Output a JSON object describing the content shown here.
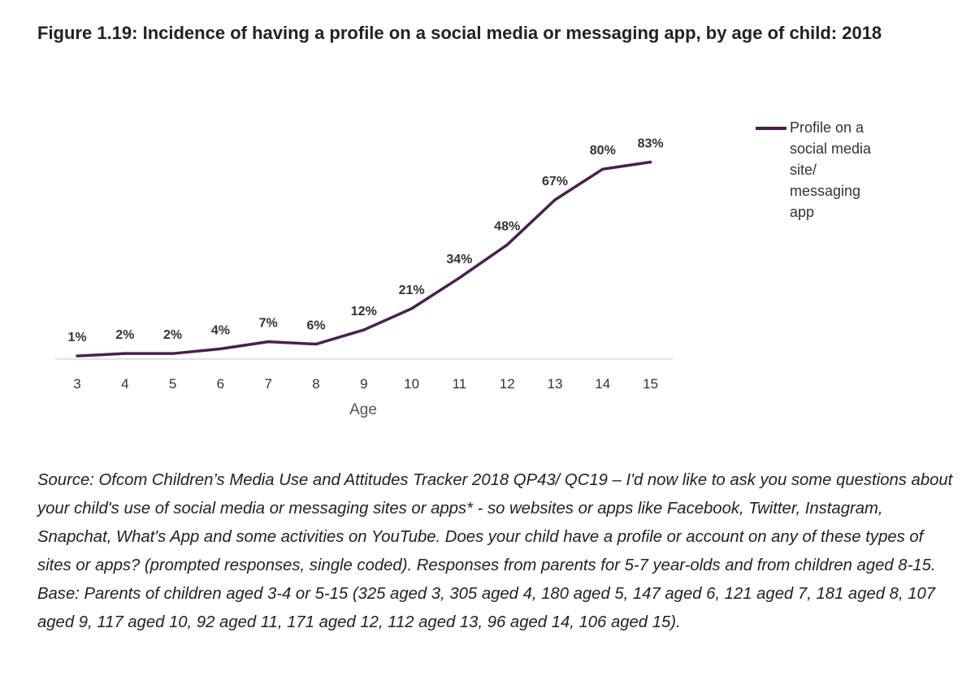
{
  "title": "Figure 1.19: Incidence of having a profile on a social media or messaging app, by age of child: 2018",
  "chart_data": {
    "type": "line",
    "xlabel": "Age",
    "ylabel": "",
    "x": [
      3,
      4,
      5,
      6,
      7,
      8,
      9,
      10,
      11,
      12,
      13,
      14,
      15
    ],
    "series": [
      {
        "name": "Profile on a social media site/ messaging app",
        "values": [
          1,
          2,
          2,
          4,
          7,
          6,
          12,
          21,
          34,
          48,
          67,
          80,
          83
        ],
        "labels": [
          "1%",
          "2%",
          "2%",
          "4%",
          "7%",
          "6%",
          "12%",
          "21%",
          "34%",
          "48%",
          "67%",
          "80%",
          "83%"
        ],
        "color": "#4b1f4f"
      }
    ],
    "ylim": [
      0,
      100
    ],
    "grid": false,
    "legend_position": "right"
  },
  "legend": {
    "text": "Profile on a social media site/ messaging app"
  },
  "source": "Source: Ofcom Children’s Media Use and Attitudes Tracker 2018 QP43/ QC19 – I'd now like to ask you some questions about your child's use of social media or messaging sites or apps* - so websites or apps like Facebook, Twitter, Instagram, Snapchat, What's App and some activities on YouTube. Does your child have a profile or account on any of these types of sites or apps? (prompted responses, single coded). Responses from parents for 5-7 year-olds and from children aged 8-15. Base: Parents of children aged 3-4 or 5-15 (325 aged 3, 305 aged 4, 180 aged 5, 147 aged 6, 121 aged 7, 181 aged 8, 107 aged 9, 117 aged 10, 92 aged 11, 171 aged 12, 112 aged 13, 96 aged 14, 106 aged 15)."
}
